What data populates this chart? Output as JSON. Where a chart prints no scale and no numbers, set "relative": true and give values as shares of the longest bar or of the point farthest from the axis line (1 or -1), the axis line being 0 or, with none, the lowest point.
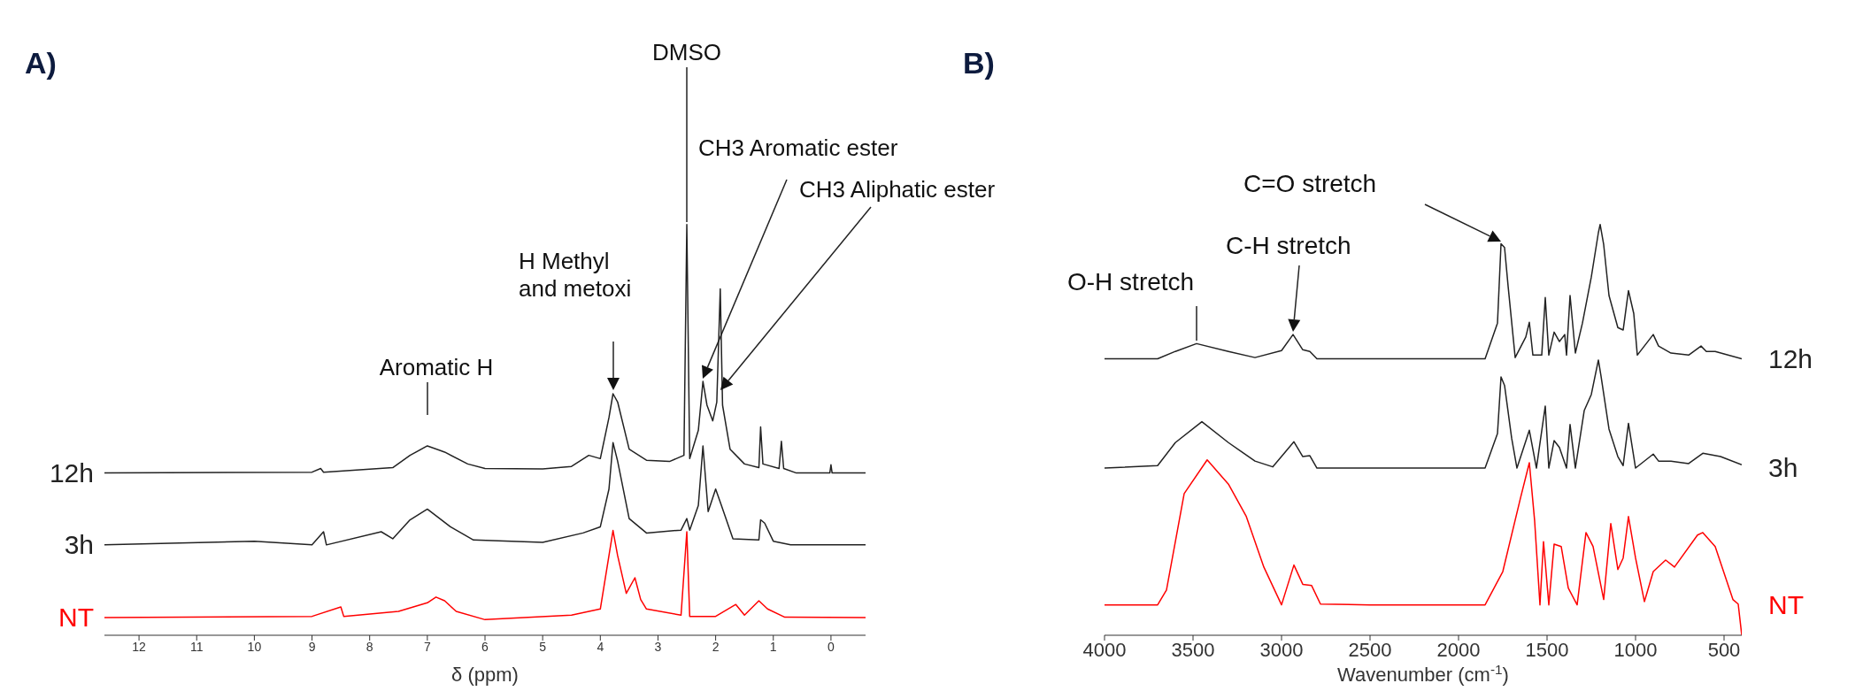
{
  "chart_data": [
    {
      "type": "line",
      "title": "A)",
      "xlabel": "δ (ppm)",
      "relative": true,
      "marker": "none",
      "xlim": [
        12.6,
        -0.6
      ],
      "xticks": [
        12,
        11,
        10,
        9,
        8,
        7,
        6,
        5,
        4,
        3,
        2,
        1,
        0
      ],
      "annotations": [
        "Aromatic H",
        "H Methyl\nand metoxi",
        "DMSO",
        "CH3 Aromatic ester",
        "CH3 Aliphatic ester"
      ],
      "series": [
        {
          "name": "12h",
          "color": "#222222",
          "x": [
            12.6,
            9.0,
            8.85,
            8.8,
            7.6,
            7.3,
            7.0,
            6.7,
            6.3,
            6.0,
            5.0,
            4.5,
            4.2,
            4.0,
            3.85,
            3.78,
            3.7,
            3.5,
            3.2,
            2.8,
            2.55,
            2.5,
            2.45,
            2.3,
            2.22,
            2.15,
            2.05,
            1.98,
            1.92,
            1.88,
            1.75,
            1.5,
            1.25,
            1.22,
            1.18,
            0.9,
            0.86,
            0.82,
            0.6,
            0.02,
            0.0,
            -0.02,
            -0.6
          ],
          "values": [
            0.395,
            0.397,
            0.406,
            0.397,
            0.408,
            0.438,
            0.461,
            0.446,
            0.417,
            0.406,
            0.405,
            0.411,
            0.438,
            0.43,
            0.53,
            0.588,
            0.568,
            0.453,
            0.426,
            0.423,
            0.438,
            1.0,
            0.43,
            0.499,
            0.618,
            0.56,
            0.522,
            0.568,
            0.843,
            0.56,
            0.453,
            0.417,
            0.408,
            0.507,
            0.417,
            0.406,
            0.472,
            0.406,
            0.395,
            0.395,
            0.415,
            0.395,
            0.395
          ]
        },
        {
          "name": "3h",
          "color": "#222222",
          "x": [
            12.6,
            10.0,
            9.0,
            8.8,
            8.75,
            7.8,
            7.6,
            7.3,
            7.0,
            6.6,
            6.2,
            5.0,
            4.3,
            4.0,
            3.85,
            3.78,
            3.7,
            3.5,
            3.2,
            2.6,
            2.5,
            2.45,
            2.3,
            2.22,
            2.13,
            2.0,
            1.9,
            1.7,
            1.25,
            1.22,
            1.15,
            1.0,
            0.7,
            -0.6
          ],
          "values": [
            0.22,
            0.229,
            0.22,
            0.252,
            0.22,
            0.252,
            0.235,
            0.281,
            0.307,
            0.264,
            0.232,
            0.226,
            0.249,
            0.264,
            0.356,
            0.469,
            0.424,
            0.284,
            0.249,
            0.256,
            0.284,
            0.256,
            0.316,
            0.461,
            0.301,
            0.356,
            0.316,
            0.235,
            0.232,
            0.281,
            0.273,
            0.229,
            0.22,
            0.22
          ]
        },
        {
          "name": "NT",
          "color": "#ff0000",
          "x": [
            12.6,
            9.0,
            8.5,
            8.45,
            7.5,
            7.0,
            6.85,
            6.7,
            6.5,
            6.0,
            4.5,
            4.0,
            3.85,
            3.78,
            3.7,
            3.55,
            3.4,
            3.3,
            3.2,
            2.6,
            2.5,
            2.45,
            2.0,
            1.65,
            1.5,
            1.25,
            1.1,
            0.8,
            -0.6
          ],
          "values": [
            0.043,
            0.046,
            0.069,
            0.046,
            0.058,
            0.079,
            0.093,
            0.084,
            0.058,
            0.038,
            0.049,
            0.064,
            0.194,
            0.255,
            0.194,
            0.102,
            0.14,
            0.087,
            0.064,
            0.049,
            0.252,
            0.046,
            0.046,
            0.075,
            0.049,
            0.084,
            0.064,
            0.044,
            0.043
          ]
        }
      ]
    },
    {
      "type": "line",
      "title": "B)",
      "xlabel": "Wavenumber (cm$^{-1}$)",
      "relative": true,
      "marker": "none",
      "xlim": [
        4000,
        400
      ],
      "xticks": [
        4000,
        3500,
        3000,
        2500,
        2000,
        1500,
        1000,
        500
      ],
      "annotations": [
        "O-H stretch",
        "C-H stretch",
        "C=O stretch"
      ],
      "series": [
        {
          "name": "12h",
          "color": "#222222",
          "x": [
            4000,
            3700,
            3600,
            3480,
            3300,
            3150,
            3000,
            2935,
            2880,
            2840,
            2800,
            1850,
            1780,
            1760,
            1740,
            1720,
            1680,
            1620,
            1600,
            1580,
            1530,
            1510,
            1490,
            1460,
            1430,
            1400,
            1390,
            1370,
            1340,
            1300,
            1250,
            1210,
            1200,
            1180,
            1150,
            1100,
            1070,
            1040,
            1010,
            990,
            900,
            870,
            800,
            700,
            630,
            600,
            550,
            400
          ],
          "values": [
            0.673,
            0.673,
            0.691,
            0.71,
            0.691,
            0.676,
            0.693,
            0.732,
            0.695,
            0.691,
            0.673,
            0.673,
            0.76,
            0.953,
            0.944,
            0.85,
            0.676,
            0.726,
            0.762,
            0.682,
            0.682,
            0.822,
            0.682,
            0.738,
            0.715,
            0.732,
            0.682,
            0.827,
            0.687,
            0.76,
            0.872,
            0.98,
            1.0,
            0.951,
            0.827,
            0.749,
            0.743,
            0.839,
            0.783,
            0.682,
            0.732,
            0.704,
            0.687,
            0.682,
            0.704,
            0.691,
            0.691,
            0.673
          ]
        },
        {
          "name": "3h",
          "color": "#222222",
          "x": [
            4000,
            3700,
            3600,
            3450,
            3300,
            3150,
            3050,
            2930,
            2880,
            2840,
            2800,
            1850,
            1780,
            1760,
            1740,
            1700,
            1670,
            1600,
            1560,
            1510,
            1490,
            1460,
            1430,
            1390,
            1370,
            1340,
            1290,
            1250,
            1210,
            1195,
            1150,
            1100,
            1070,
            1040,
            1000,
            900,
            870,
            800,
            700,
            620,
            520,
            400
          ],
          "values": [
            0.407,
            0.413,
            0.469,
            0.52,
            0.469,
            0.424,
            0.41,
            0.471,
            0.435,
            0.437,
            0.407,
            0.407,
            0.491,
            0.629,
            0.608,
            0.48,
            0.407,
            0.499,
            0.407,
            0.558,
            0.407,
            0.474,
            0.457,
            0.407,
            0.513,
            0.407,
            0.547,
            0.586,
            0.67,
            0.631,
            0.502,
            0.435,
            0.413,
            0.516,
            0.407,
            0.441,
            0.424,
            0.424,
            0.418,
            0.443,
            0.435,
            0.415
          ]
        },
        {
          "name": "NT",
          "color": "#ff0000",
          "x": [
            4000,
            3700,
            3650,
            3550,
            3420,
            3300,
            3200,
            3100,
            3000,
            2930,
            2880,
            2830,
            2780,
            2500,
            1850,
            1750,
            1650,
            1600,
            1570,
            1540,
            1520,
            1490,
            1460,
            1420,
            1380,
            1330,
            1280,
            1240,
            1180,
            1140,
            1100,
            1070,
            1040,
            1000,
            950,
            900,
            830,
            780,
            650,
            620,
            550,
            450,
            420,
            400
          ],
          "values": [
            0.074,
            0.074,
            0.11,
            0.345,
            0.427,
            0.368,
            0.29,
            0.166,
            0.074,
            0.171,
            0.124,
            0.121,
            0.076,
            0.074,
            0.074,
            0.155,
            0.334,
            0.42,
            0.278,
            0.074,
            0.228,
            0.074,
            0.222,
            0.216,
            0.115,
            0.074,
            0.25,
            0.216,
            0.087,
            0.272,
            0.16,
            0.188,
            0.289,
            0.188,
            0.082,
            0.155,
            0.183,
            0.166,
            0.244,
            0.25,
            0.216,
            0.087,
            0.076,
            0.0
          ]
        }
      ]
    }
  ]
}
